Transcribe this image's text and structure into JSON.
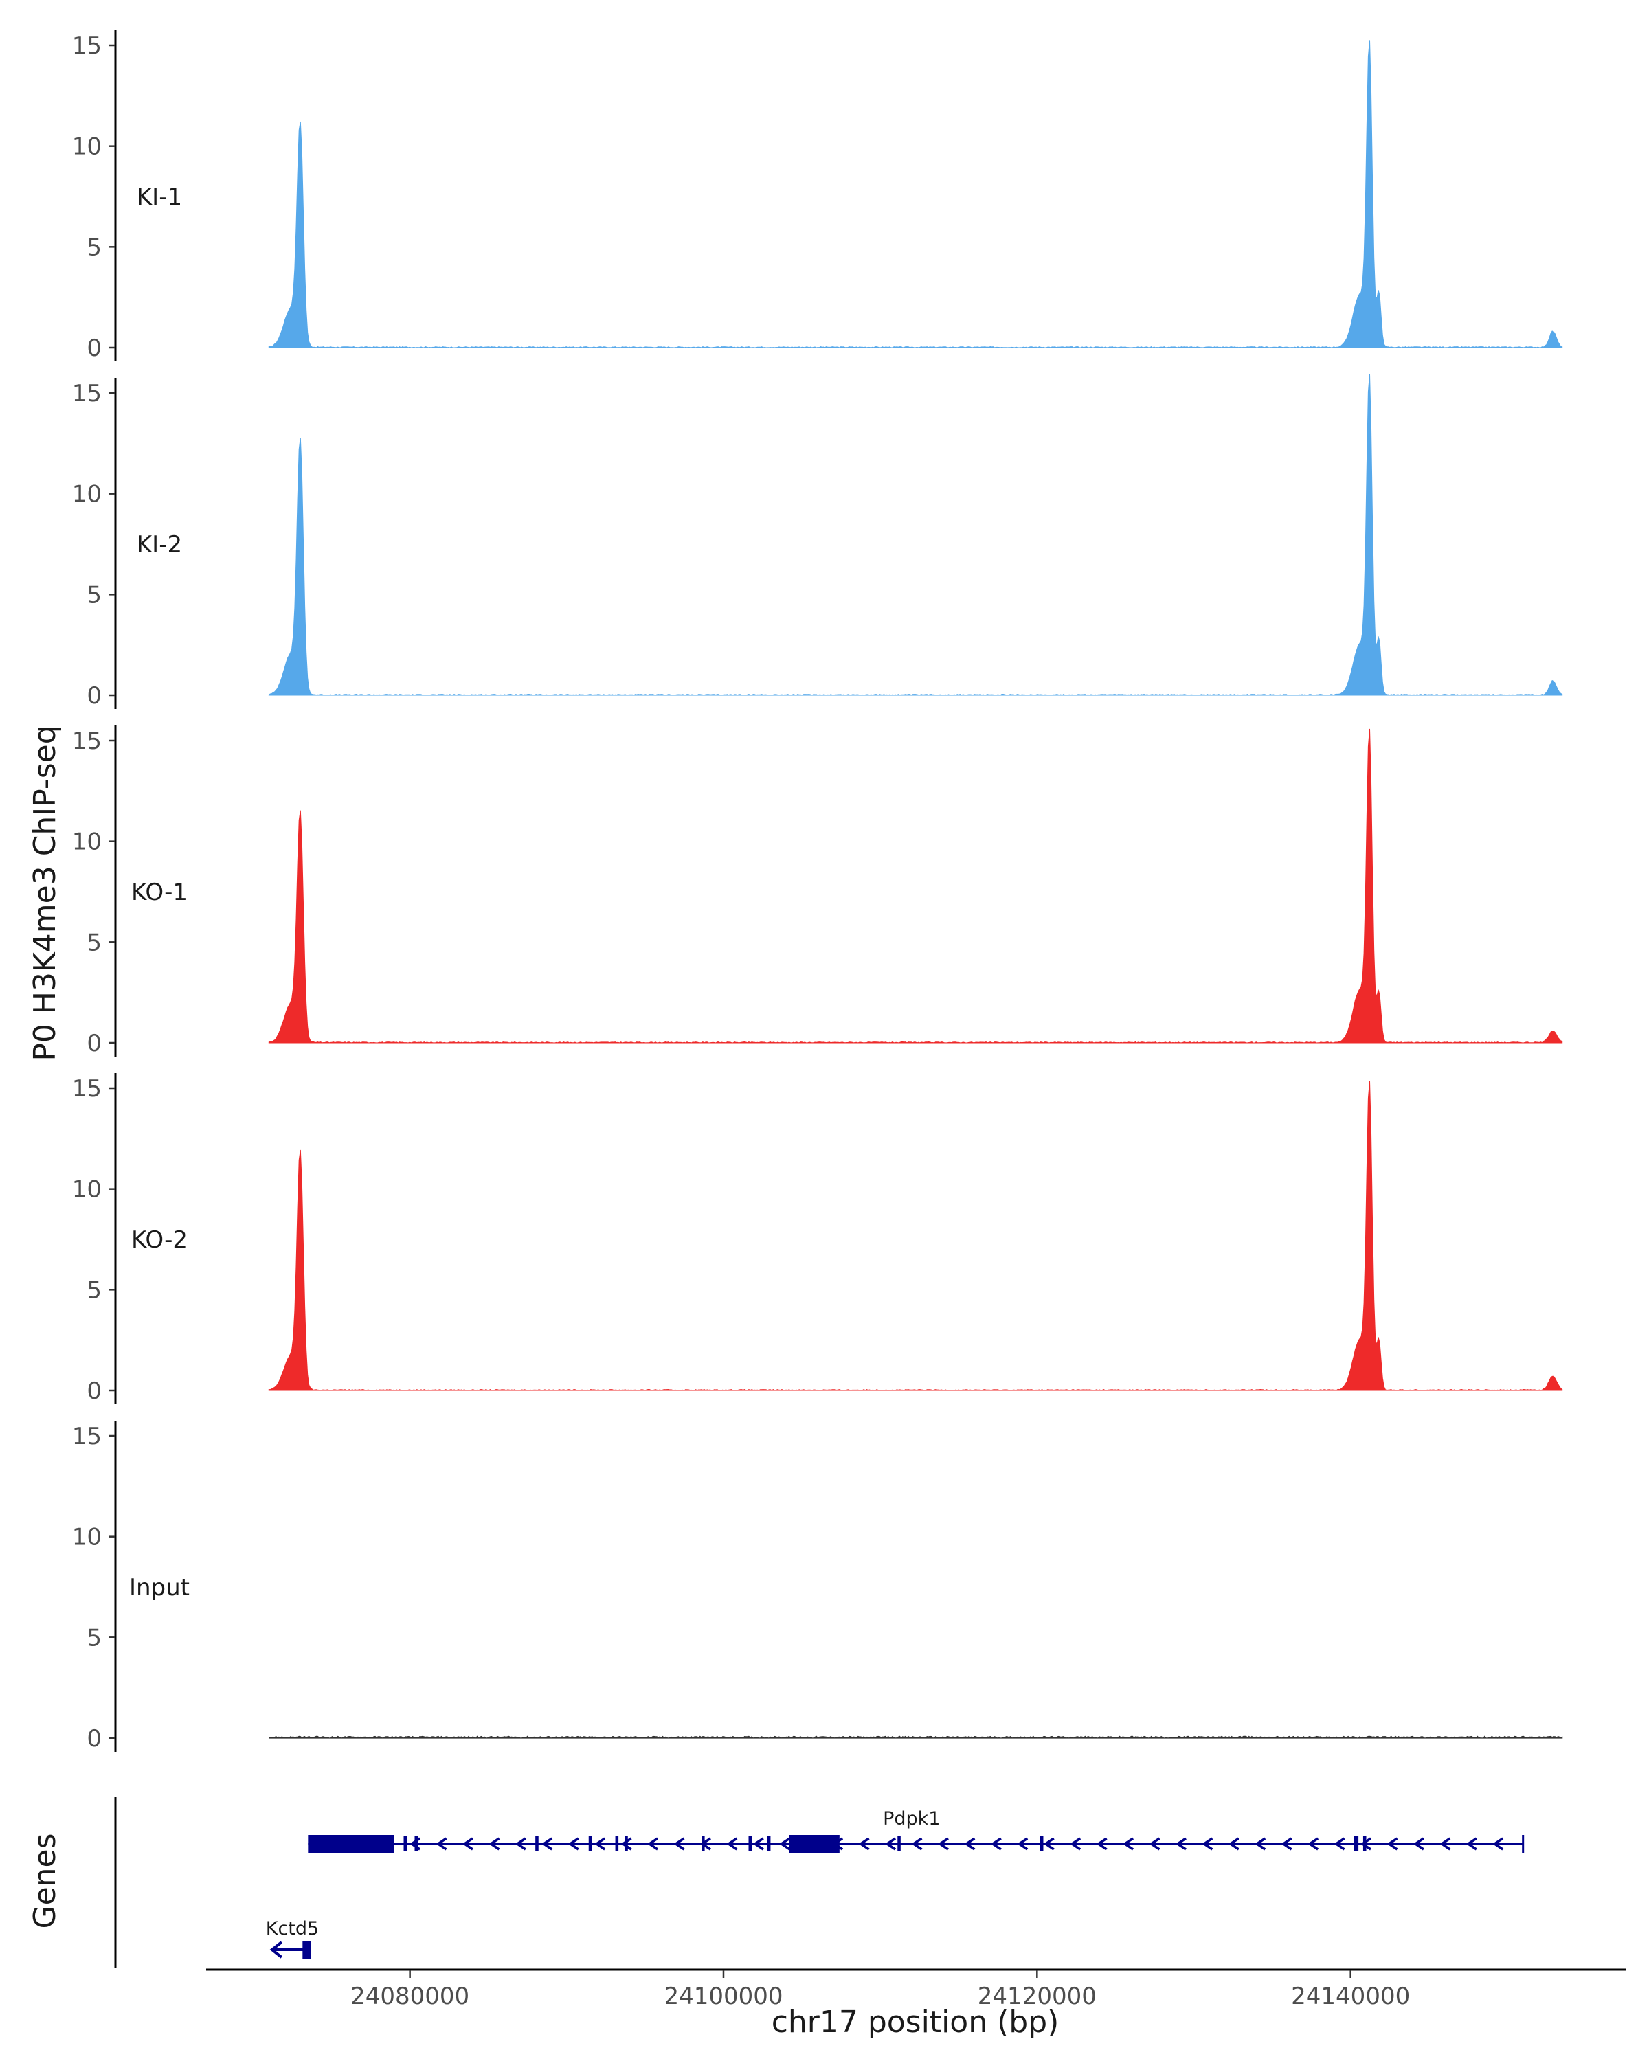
{
  "chart_data": {
    "type": "area",
    "ylabel": "P0 H3K4me3 ChIP-seq",
    "xlabel": "chr17 position (bp)",
    "genes_label": "Genes",
    "ylim": [
      0,
      15
    ],
    "y_ticks": [
      0,
      5,
      10,
      15
    ],
    "x_ticks": [
      24080000,
      24100000,
      24120000,
      24140000
    ],
    "xlim": [
      24067000,
      24157500
    ],
    "signal_range": [
      24071000,
      24153500
    ],
    "colors": {
      "KI": "#56A8EA",
      "KO": "#EE2A2A",
      "Input": "#333333",
      "gene": "#00008B"
    },
    "tracks": [
      {
        "name": "KI-1",
        "color_key": "KI",
        "peaks": [
          [
            24073000,
            10.5,
            200
          ],
          [
            24072400,
            1.9,
            450
          ],
          [
            24141200,
            14.3,
            180
          ],
          [
            24140600,
            2.6,
            450
          ],
          [
            24141800,
            2.7,
            140
          ],
          [
            24152900,
            0.8,
            220
          ]
        ]
      },
      {
        "name": "KI-2",
        "color_key": "KI",
        "peaks": [
          [
            24073000,
            12.0,
            200
          ],
          [
            24072400,
            2.0,
            450
          ],
          [
            24141200,
            15.0,
            180
          ],
          [
            24140600,
            2.5,
            450
          ],
          [
            24141800,
            2.8,
            140
          ],
          [
            24152900,
            0.7,
            220
          ]
        ]
      },
      {
        "name": "KO-1",
        "color_key": "KO",
        "peaks": [
          [
            24073000,
            10.8,
            200
          ],
          [
            24072400,
            1.9,
            450
          ],
          [
            24141200,
            14.6,
            180
          ],
          [
            24140600,
            2.6,
            450
          ],
          [
            24141800,
            2.5,
            140
          ],
          [
            24152900,
            0.6,
            250
          ]
        ]
      },
      {
        "name": "KO-2",
        "color_key": "KO",
        "peaks": [
          [
            24073000,
            11.3,
            200
          ],
          [
            24072400,
            1.7,
            450
          ],
          [
            24141200,
            14.4,
            180
          ],
          [
            24140600,
            2.5,
            450
          ],
          [
            24141800,
            2.5,
            140
          ],
          [
            24152900,
            0.7,
            250
          ]
        ]
      },
      {
        "name": "Input",
        "color_key": "Input",
        "peaks": []
      }
    ],
    "genes": [
      {
        "name": "Pdpk1",
        "strand": "-",
        "start": 24073500,
        "end": 24151000,
        "exons": [
          [
            24073500,
            24079000,
            "cds"
          ],
          [
            24104200,
            24107400,
            "cds"
          ],
          [
            24079600,
            24079800,
            "exon"
          ],
          [
            24080300,
            24080500,
            "exon"
          ],
          [
            24088000,
            24088200,
            "exon"
          ],
          [
            24091400,
            24091600,
            "exon"
          ],
          [
            24093100,
            24093300,
            "exon"
          ],
          [
            24093700,
            24093900,
            "exon"
          ],
          [
            24098600,
            24098800,
            "exon"
          ],
          [
            24101600,
            24101800,
            "exon"
          ],
          [
            24102800,
            24103000,
            "exon"
          ],
          [
            24111100,
            24111300,
            "exon"
          ],
          [
            24120200,
            24120400,
            "exon"
          ],
          [
            24140200,
            24140500,
            "exon"
          ],
          [
            24140800,
            24141000,
            "exon"
          ]
        ]
      },
      {
        "name": "Kctd5",
        "strand": "-",
        "start": 24071200,
        "end": 24073600,
        "exons": [
          [
            24073150,
            24073600,
            "cds"
          ]
        ]
      }
    ]
  }
}
